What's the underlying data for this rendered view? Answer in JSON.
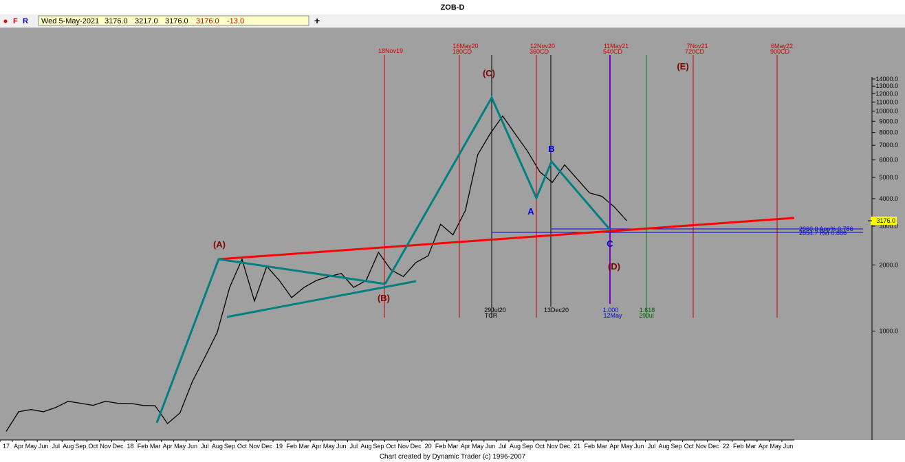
{
  "header": {
    "title": "ZOB-D",
    "buttons": [
      "F",
      "R"
    ],
    "quote": [
      "Wed 5-May-2021",
      "3176.0",
      "3217.0",
      "3176.0",
      "3176.0",
      "-13.0"
    ]
  },
  "chart_data": {
    "type": "line",
    "log_scale": true,
    "color": "#000000",
    "categories": [
      "17",
      "Apr",
      "May",
      "Jun",
      "Jul",
      "Aug",
      "Sep",
      "Oct",
      "Nov",
      "Dec",
      "18",
      "Feb",
      "Mar",
      "Apr",
      "May",
      "Jun",
      "Jul",
      "Aug",
      "Sep",
      "Oct",
      "Nov",
      "Dec",
      "19",
      "Feb",
      "Mar",
      "Apr",
      "May",
      "Jun",
      "Jul",
      "Aug",
      "Sep",
      "Oct",
      "Nov",
      "Dec",
      "20",
      "Feb",
      "Mar",
      "Apr",
      "May",
      "Jun",
      "Jul",
      "Aug",
      "Sep",
      "Oct",
      "Nov",
      "Dec",
      "21",
      "Feb",
      "Mar",
      "Apr",
      "May",
      "Jun",
      "Jul",
      "Aug",
      "Sep",
      "Oct",
      "Nov",
      "Dec",
      "22",
      "Feb",
      "Mar",
      "Apr",
      "May",
      "Jun"
    ],
    "values": [
      350,
      430,
      440,
      430,
      450,
      480,
      470,
      460,
      480,
      470,
      470,
      460,
      458,
      380,
      425,
      590,
      760,
      985,
      1580,
      2120,
      1370,
      1970,
      1700,
      1420,
      1580,
      1700,
      1770,
      1830,
      1580,
      1700,
      2280,
      1900,
      1770,
      2050,
      2200,
      3060,
      2740,
      3540,
      6350,
      7900,
      9500,
      7900,
      6580,
      5300,
      4740,
      5700,
      4920,
      4250,
      4100,
      3670,
      3176,
      null,
      null,
      null,
      null,
      null,
      null,
      null,
      null,
      null,
      null,
      null,
      null,
      null
    ],
    "ylim": [
      320,
      24000
    ],
    "yticks": [
      {
        "value": 1000,
        "label": "1000.0"
      },
      {
        "value": 2000,
        "label": "2000.0"
      },
      {
        "value": 3000,
        "label": "3000.0"
      },
      {
        "value": 4000,
        "label": "4000.0"
      },
      {
        "value": 5000,
        "label": "5000.0"
      },
      {
        "value": 6000,
        "label": "6000.0"
      },
      {
        "value": 7000,
        "label": "7000.0"
      },
      {
        "value": 8000,
        "label": "8000.0"
      },
      {
        "value": 9000,
        "label": "9000.0"
      },
      {
        "value": 10000,
        "label": "10000.0"
      },
      {
        "value": 11000,
        "label": "11000.0"
      },
      {
        "value": 12000,
        "label": "12000.0"
      },
      {
        "value": 13000,
        "label": "13000.0"
      },
      {
        "value": 14000,
        "label": "14000.0"
      }
    ],
    "last_price": {
      "value": 3176,
      "label": "3176.0"
    }
  },
  "annotations": {
    "time_lines": [
      [
        "18Nov19"
      ],
      [
        "16May20",
        "180CD"
      ],
      [
        "12Nov20",
        "360CD"
      ],
      [
        "11May21",
        "540CD"
      ],
      [
        "7Nov21",
        "720CD"
      ],
      [
        "6May22",
        "900CD"
      ]
    ],
    "bottom_labels": [
      [
        "29Jul20",
        "TCR"
      ],
      [
        "13Dec20"
      ],
      [
        "1.000",
        "12May"
      ],
      [
        "1.618",
        "29Jul"
      ]
    ],
    "waves": [
      "(A)",
      "(B)",
      "(C)",
      "(D)",
      "(E)",
      "A",
      "B",
      "C"
    ],
    "levels": [
      "2960.0 App% 0.786",
      "2854.7 Ret 0.886"
    ]
  },
  "footer": "Chart created by Dynamic Trader  (c) 1996-2007"
}
